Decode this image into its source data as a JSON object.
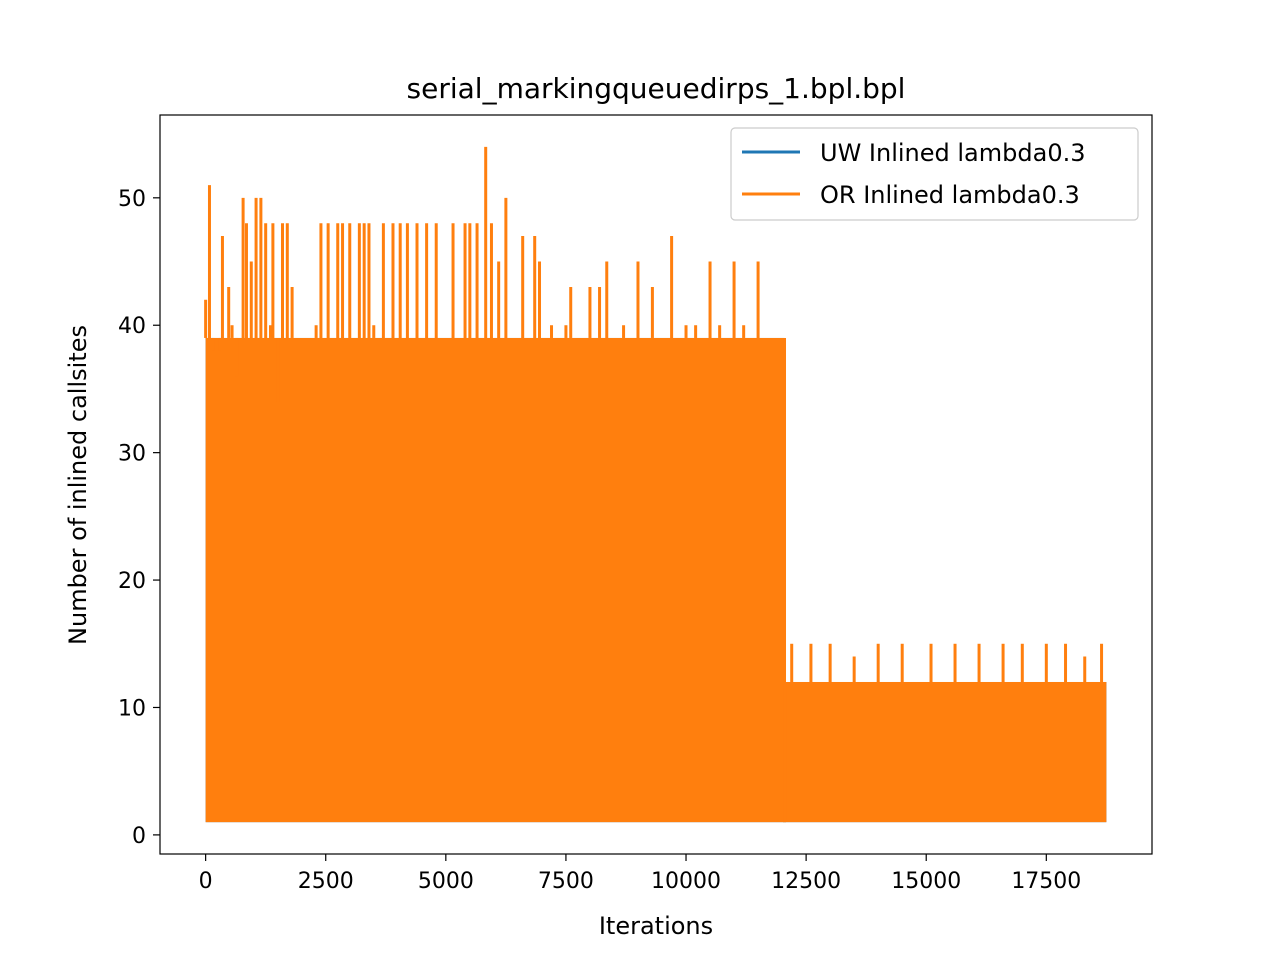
{
  "chart_data": {
    "type": "line",
    "title": "serial_markingqueuedirps_1.bpl.bpl",
    "xlabel": "Iterations",
    "ylabel": "Number of inlined callsites",
    "xlim": [
      -950,
      19700
    ],
    "ylim": [
      -1.5,
      56.5
    ],
    "xticks": [
      0,
      2500,
      5000,
      7500,
      10000,
      12500,
      15000,
      17500
    ],
    "yticks": [
      0,
      10,
      20,
      30,
      40,
      50
    ],
    "grid": false,
    "legend_position": "top-right",
    "n_iterations": 18750,
    "series": [
      {
        "name": "UW Inlined lambda0.3",
        "color": "#1f77b4",
        "segments": [
          {
            "x_start": 0,
            "x_end": 12050,
            "y_min": 1,
            "y_max": 39
          },
          {
            "x_start": 12050,
            "x_end": 18750,
            "y_min": 1,
            "y_max": 12
          }
        ]
      },
      {
        "name": "OR Inlined lambda0.3",
        "color": "#ff7f0e",
        "segments": [
          {
            "x_start": 0,
            "x_end": 12050,
            "y_min": 1,
            "y_max": 39
          },
          {
            "x_start": 12050,
            "x_end": 18750,
            "y_min": 1,
            "y_max": 12
          }
        ],
        "spikes": [
          {
            "x": 0,
            "y": 42
          },
          {
            "x": 80,
            "y": 51
          },
          {
            "x": 150,
            "y": 38
          },
          {
            "x": 300,
            "y": 38
          },
          {
            "x": 350,
            "y": 47
          },
          {
            "x": 480,
            "y": 43
          },
          {
            "x": 550,
            "y": 40
          },
          {
            "x": 650,
            "y": 36
          },
          {
            "x": 780,
            "y": 50
          },
          {
            "x": 850,
            "y": 48
          },
          {
            "x": 950,
            "y": 45
          },
          {
            "x": 1050,
            "y": 50
          },
          {
            "x": 1150,
            "y": 50
          },
          {
            "x": 1250,
            "y": 48
          },
          {
            "x": 1350,
            "y": 40
          },
          {
            "x": 1400,
            "y": 48
          },
          {
            "x": 1500,
            "y": 34
          },
          {
            "x": 1600,
            "y": 48
          },
          {
            "x": 1700,
            "y": 48
          },
          {
            "x": 1800,
            "y": 43
          },
          {
            "x": 2200,
            "y": 39
          },
          {
            "x": 2300,
            "y": 40
          },
          {
            "x": 2400,
            "y": 48
          },
          {
            "x": 2550,
            "y": 48
          },
          {
            "x": 2750,
            "y": 48
          },
          {
            "x": 2850,
            "y": 48
          },
          {
            "x": 3000,
            "y": 48
          },
          {
            "x": 3200,
            "y": 48
          },
          {
            "x": 3300,
            "y": 48
          },
          {
            "x": 3400,
            "y": 48
          },
          {
            "x": 3500,
            "y": 40
          },
          {
            "x": 3700,
            "y": 48
          },
          {
            "x": 3900,
            "y": 48
          },
          {
            "x": 4050,
            "y": 48
          },
          {
            "x": 4200,
            "y": 48
          },
          {
            "x": 4400,
            "y": 48
          },
          {
            "x": 4600,
            "y": 48
          },
          {
            "x": 4800,
            "y": 48
          },
          {
            "x": 5150,
            "y": 48
          },
          {
            "x": 5300,
            "y": 39
          },
          {
            "x": 5400,
            "y": 48
          },
          {
            "x": 5500,
            "y": 48
          },
          {
            "x": 5650,
            "y": 48
          },
          {
            "x": 5830,
            "y": 54
          },
          {
            "x": 5950,
            "y": 48
          },
          {
            "x": 6100,
            "y": 45
          },
          {
            "x": 6250,
            "y": 50
          },
          {
            "x": 6600,
            "y": 47
          },
          {
            "x": 6850,
            "y": 47
          },
          {
            "x": 6950,
            "y": 45
          },
          {
            "x": 7200,
            "y": 40
          },
          {
            "x": 7500,
            "y": 40
          },
          {
            "x": 7600,
            "y": 43
          },
          {
            "x": 8000,
            "y": 43
          },
          {
            "x": 8200,
            "y": 43
          },
          {
            "x": 8350,
            "y": 45
          },
          {
            "x": 8700,
            "y": 40
          },
          {
            "x": 9000,
            "y": 45
          },
          {
            "x": 9300,
            "y": 43
          },
          {
            "x": 9700,
            "y": 47
          },
          {
            "x": 10000,
            "y": 40
          },
          {
            "x": 10200,
            "y": 40
          },
          {
            "x": 10500,
            "y": 45
          },
          {
            "x": 10700,
            "y": 40
          },
          {
            "x": 11000,
            "y": 45
          },
          {
            "x": 11200,
            "y": 40
          },
          {
            "x": 11500,
            "y": 45
          },
          {
            "x": 11700,
            "y": 39
          },
          {
            "x": 11950,
            "y": 39
          },
          {
            "x": 12050,
            "y": 28
          },
          {
            "x": 12200,
            "y": 15
          },
          {
            "x": 12600,
            "y": 15
          },
          {
            "x": 13000,
            "y": 15
          },
          {
            "x": 13500,
            "y": 14
          },
          {
            "x": 14000,
            "y": 15
          },
          {
            "x": 14500,
            "y": 15
          },
          {
            "x": 15100,
            "y": 15
          },
          {
            "x": 15600,
            "y": 15
          },
          {
            "x": 16100,
            "y": 15
          },
          {
            "x": 16600,
            "y": 15
          },
          {
            "x": 17000,
            "y": 15
          },
          {
            "x": 17500,
            "y": 15
          },
          {
            "x": 17900,
            "y": 15
          },
          {
            "x": 18300,
            "y": 14
          },
          {
            "x": 18650,
            "y": 15
          }
        ]
      }
    ]
  }
}
